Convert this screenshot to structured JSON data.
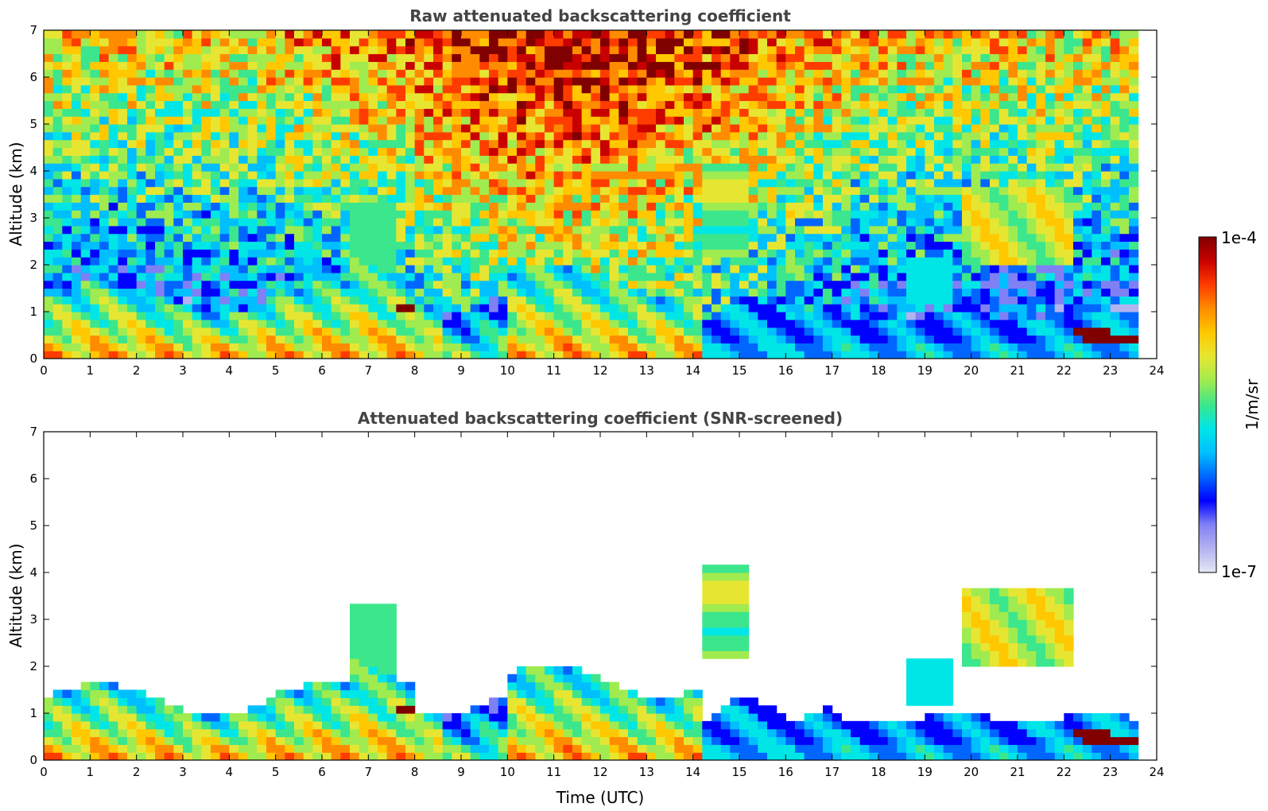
{
  "chart_data": [
    {
      "type": "heatmap",
      "title": "Raw attenuated backscattering coefficient",
      "xlabel": "",
      "ylabel": "Altitude (km)",
      "xlim": [
        0,
        24
      ],
      "ylim": [
        0,
        7
      ],
      "xticks": [
        "0",
        "1",
        "2",
        "3",
        "4",
        "5",
        "6",
        "7",
        "8",
        "9",
        "10",
        "11",
        "12",
        "13",
        "14",
        "15",
        "16",
        "17",
        "18",
        "19",
        "20",
        "21",
        "22",
        "23",
        "24"
      ],
      "yticks": [
        "0",
        "1",
        "2",
        "3",
        "4",
        "5",
        "6",
        "7"
      ],
      "data_end_time": 23.6,
      "screened": false,
      "features": [
        {
          "name": "boundary layer aerosol",
          "t_start": 0,
          "t_end": 14.3,
          "top_km": 1.5
        },
        {
          "name": "elevated aerosol layer",
          "t_start": 19.8,
          "t_end": 22.3,
          "bottom_km": 2.0,
          "top_km": 3.6
        },
        {
          "name": "low cloud",
          "t_start": 22.2,
          "t_end": 23.6,
          "altitude_km": 0.5
        }
      ]
    },
    {
      "type": "heatmap",
      "title": "Attenuated backscattering coefficient (SNR-screened)",
      "xlabel": "Time (UTC)",
      "ylabel": "Altitude (km)",
      "xlim": [
        0,
        24
      ],
      "ylim": [
        0,
        7
      ],
      "xticks": [
        "0",
        "1",
        "2",
        "3",
        "4",
        "5",
        "6",
        "7",
        "8",
        "9",
        "10",
        "11",
        "12",
        "13",
        "14",
        "15",
        "16",
        "17",
        "18",
        "19",
        "20",
        "21",
        "22",
        "23",
        "24"
      ],
      "yticks": [
        "0",
        "1",
        "2",
        "3",
        "4",
        "5",
        "6",
        "7"
      ],
      "data_end_time": 23.6,
      "screened": true,
      "features": [
        {
          "name": "boundary layer aerosol",
          "t_start": 0,
          "t_end": 14.3,
          "top_km": 2.0
        },
        {
          "name": "elevated aerosol layer",
          "t_start": 19.8,
          "t_end": 22.3,
          "bottom_km": 2.0,
          "top_km": 3.6
        },
        {
          "name": "low cloud",
          "t_start": 22.2,
          "t_end": 23.6,
          "altitude_km": 0.5
        }
      ]
    }
  ],
  "colorbar": {
    "label": "1/m/sr",
    "max_label": "1e-4",
    "min_label": "1e-7",
    "scale": "log",
    "colors": [
      "#e6e6f5",
      "#b3b3f0",
      "#8080f5",
      "#0000ff",
      "#0066ff",
      "#00bfff",
      "#00e6e6",
      "#3ce68c",
      "#a0eb50",
      "#e6e632",
      "#ffc800",
      "#ff8c00",
      "#ff3c00",
      "#c80000",
      "#800000"
    ]
  }
}
